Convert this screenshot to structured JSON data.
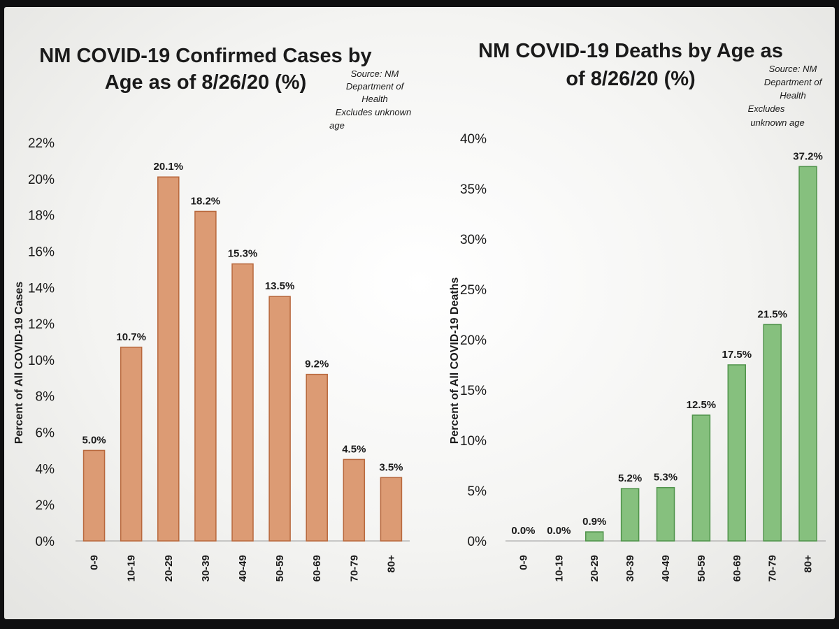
{
  "chart_data": [
    {
      "type": "bar",
      "title": [
        "NM COVID-19 Confirmed Cases by",
        "Age as of 8/26/20 (%)"
      ],
      "source_note": [
        "Source: NM",
        "Department of",
        "Health",
        "Excludes unknown",
        "age"
      ],
      "ylabel": "Percent of All COVID-19 Cases",
      "xlabel": "",
      "categories": [
        "0-9",
        "10-19",
        "20-29",
        "30-39",
        "40-49",
        "50-59",
        "60-69",
        "70-79",
        "80+"
      ],
      "values": [
        5.0,
        10.7,
        20.1,
        18.2,
        15.3,
        13.5,
        9.2,
        4.5,
        3.5
      ],
      "data_labels": [
        "5.0%",
        "10.7%",
        "20.1%",
        "18.2%",
        "15.3%",
        "13.5%",
        "9.2%",
        "4.5%",
        "3.5%"
      ],
      "ylim": [
        0,
        22
      ],
      "yticks": [
        0,
        2,
        4,
        6,
        8,
        10,
        12,
        14,
        16,
        18,
        20,
        22
      ],
      "ytick_labels": [
        "0%",
        "2%",
        "4%",
        "6%",
        "8%",
        "10%",
        "12%",
        "14%",
        "16%",
        "18%",
        "20%",
        "22%"
      ],
      "bar_color": "#dc9b74",
      "grid": false,
      "legend": "none"
    },
    {
      "type": "bar",
      "title": [
        "NM COVID-19 Deaths by Age as",
        "of 8/26/20 (%)"
      ],
      "source_note": [
        "Source: NM",
        "Department of",
        "Health",
        "Excludes",
        "unknown age"
      ],
      "ylabel": "Percent of All COVID-19 Deaths",
      "xlabel": "",
      "categories": [
        "0-9",
        "10-19",
        "20-29",
        "30-39",
        "40-49",
        "50-59",
        "60-69",
        "70-79",
        "80+"
      ],
      "values": [
        0.0,
        0.0,
        0.9,
        5.2,
        5.3,
        12.5,
        17.5,
        21.5,
        37.2
      ],
      "data_labels": [
        "0.0%",
        "0.0%",
        "0.9%",
        "5.2%",
        "5.3%",
        "12.5%",
        "17.5%",
        "21.5%",
        "37.2%"
      ],
      "ylim": [
        0,
        40
      ],
      "yticks": [
        0,
        5,
        10,
        15,
        20,
        25,
        30,
        35,
        40
      ],
      "ytick_labels": [
        "0%",
        "5%",
        "10%",
        "15%",
        "20%",
        "25%",
        "30%",
        "35%",
        "40%"
      ],
      "bar_color": "#86c07e",
      "grid": false,
      "legend": "none"
    }
  ]
}
